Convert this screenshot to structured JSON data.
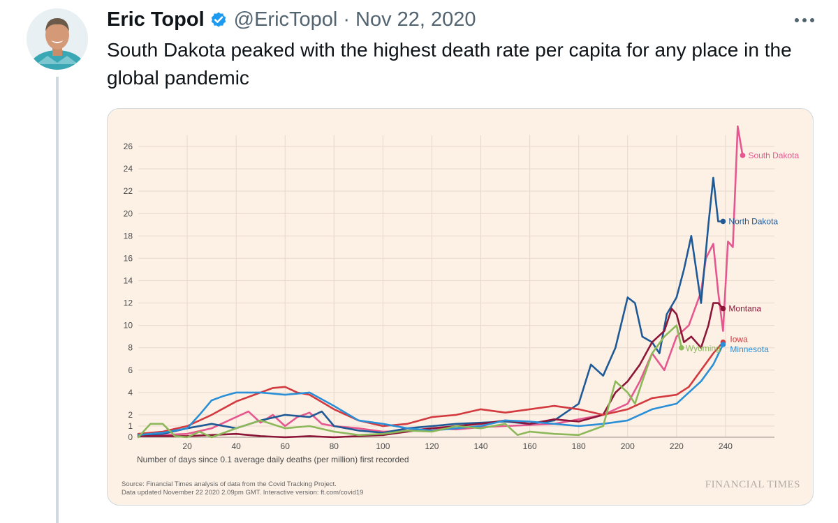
{
  "tweet": {
    "author_name": "Eric Topol",
    "handle": "@EricTopol",
    "separator": "·",
    "date": "Nov 22, 2020",
    "text": "South Dakota peaked with the highest death rate per capita for any place in the global pandemic",
    "icons": {
      "verified": "verified-badge-icon",
      "more": "more-options-icon",
      "avatar": "avatar-photo"
    },
    "colors": {
      "verified": "#1d9bf0",
      "secondary_text": "#536471"
    }
  },
  "chart_data": {
    "type": "line",
    "xlabel": "Number of days since 0.1 average daily deaths (per million) first recorded",
    "ylabel": "",
    "xlim": [
      0,
      260
    ],
    "ylim": [
      0,
      27
    ],
    "x_ticks": [
      20,
      40,
      60,
      80,
      100,
      120,
      140,
      160,
      180,
      200,
      220,
      240
    ],
    "y_ticks": [
      0,
      1,
      2,
      4,
      6,
      8,
      10,
      12,
      14,
      16,
      18,
      20,
      22,
      24,
      26
    ],
    "grid": true,
    "source_line_1": "Source: Financial Times analysis of data from the Covid Tracking Project.",
    "source_line_2": "Data updated November 22 2020 2.09pm GMT. Interactive version: ft.com/covid19",
    "brand": "FINANCIAL TIMES",
    "series": [
      {
        "name": "South Dakota",
        "color": "#e5588f",
        "x": [
          0,
          10,
          20,
          30,
          40,
          45,
          50,
          55,
          60,
          65,
          70,
          75,
          80,
          90,
          100,
          110,
          120,
          130,
          140,
          150,
          160,
          170,
          180,
          190,
          200,
          205,
          210,
          215,
          220,
          225,
          230,
          232,
          235,
          237,
          239,
          241,
          243,
          245,
          247
        ],
        "y": [
          0.3,
          0.2,
          0.3,
          0.8,
          1.8,
          2.3,
          1.3,
          2.0,
          1.0,
          1.8,
          2.2,
          1.2,
          1.0,
          0.8,
          0.5,
          0.6,
          0.8,
          0.7,
          0.9,
          1.0,
          1.1,
          1.2,
          1.6,
          2.0,
          3.0,
          5.0,
          7.5,
          6.0,
          9.0,
          10.0,
          13.0,
          16.0,
          17.3,
          13.0,
          9.5,
          17.5,
          17.0,
          27.8,
          25.2
        ]
      },
      {
        "name": "North Dakota",
        "color": "#1f5a96",
        "x": [
          0,
          10,
          20,
          30,
          40,
          50,
          60,
          70,
          75,
          80,
          90,
          100,
          110,
          120,
          130,
          140,
          150,
          160,
          170,
          180,
          185,
          190,
          195,
          200,
          203,
          206,
          210,
          213,
          216,
          220,
          223,
          226,
          230,
          233,
          235,
          237,
          239
        ],
        "y": [
          0.2,
          0.3,
          0.8,
          1.2,
          0.8,
          1.5,
          2.0,
          1.8,
          2.3,
          1.0,
          0.6,
          0.4,
          0.8,
          1.0,
          1.2,
          1.3,
          1.4,
          1.2,
          1.5,
          3.0,
          6.5,
          5.5,
          8.0,
          12.5,
          12.0,
          9.0,
          8.5,
          7.5,
          11.0,
          12.5,
          15.0,
          18.0,
          12.0,
          19.0,
          23.2,
          19.3,
          19.3
        ]
      },
      {
        "name": "Montana",
        "color": "#8c1637",
        "x": [
          0,
          10,
          20,
          30,
          40,
          50,
          60,
          70,
          80,
          90,
          100,
          110,
          120,
          130,
          140,
          150,
          160,
          170,
          180,
          190,
          195,
          200,
          205,
          210,
          215,
          218,
          220,
          223,
          226,
          230,
          233,
          235,
          237,
          239
        ],
        "y": [
          0.1,
          0.1,
          0.1,
          0.2,
          0.3,
          0.1,
          0.0,
          0.1,
          0.0,
          0.1,
          0.2,
          0.5,
          0.8,
          1.0,
          1.2,
          1.5,
          1.2,
          1.6,
          1.4,
          2.0,
          4.0,
          5.0,
          6.5,
          8.5,
          9.5,
          11.5,
          11.0,
          8.5,
          9.0,
          8.0,
          10.0,
          12.0,
          12.0,
          11.5
        ]
      },
      {
        "name": "Iowa",
        "color": "#d23a3f",
        "x": [
          0,
          10,
          20,
          30,
          40,
          50,
          55,
          60,
          65,
          70,
          80,
          90,
          100,
          110,
          120,
          130,
          140,
          150,
          160,
          170,
          180,
          190,
          200,
          210,
          220,
          225,
          230,
          235,
          239
        ],
        "y": [
          0.3,
          0.5,
          1.0,
          2.0,
          3.2,
          4.0,
          4.4,
          4.5,
          4.0,
          3.8,
          2.5,
          1.5,
          1.0,
          1.2,
          1.8,
          2.0,
          2.5,
          2.2,
          2.5,
          2.8,
          2.5,
          2.0,
          2.5,
          3.5,
          3.8,
          4.5,
          6.0,
          7.5,
          8.5
        ]
      },
      {
        "name": "Minnesota",
        "color": "#2a8fd6",
        "x": [
          0,
          10,
          20,
          25,
          30,
          35,
          40,
          50,
          60,
          70,
          80,
          90,
          100,
          110,
          120,
          130,
          140,
          150,
          160,
          170,
          180,
          190,
          200,
          210,
          220,
          230,
          235,
          239
        ],
        "y": [
          0.2,
          0.4,
          0.8,
          2.0,
          3.3,
          3.7,
          4.0,
          4.0,
          3.8,
          4.0,
          2.8,
          1.5,
          1.2,
          0.8,
          0.6,
          0.8,
          1.0,
          1.5,
          1.4,
          1.2,
          1.0,
          1.2,
          1.5,
          2.5,
          3.0,
          5.0,
          6.5,
          8.3
        ]
      },
      {
        "name": "Wyoming",
        "color": "#8db85a",
        "x": [
          0,
          5,
          10,
          15,
          20,
          25,
          30,
          40,
          50,
          60,
          70,
          80,
          90,
          100,
          110,
          120,
          130,
          140,
          150,
          155,
          160,
          170,
          180,
          185,
          190,
          195,
          200,
          203,
          206,
          210,
          215,
          220,
          222
        ],
        "y": [
          0.0,
          1.2,
          1.2,
          0.1,
          0.0,
          0.5,
          0.0,
          0.8,
          1.5,
          0.8,
          1.0,
          0.5,
          0.2,
          0.3,
          0.6,
          0.5,
          1.0,
          0.8,
          1.2,
          0.2,
          0.5,
          0.3,
          0.2,
          0.6,
          1.0,
          5.0,
          4.0,
          3.0,
          5.0,
          7.5,
          9.0,
          10.0,
          8.0
        ]
      }
    ],
    "labels": [
      {
        "text": "South Dakota",
        "series": "South Dakota",
        "x": 247,
        "y": 25.2
      },
      {
        "text": "North Dakota",
        "series": "North Dakota",
        "x": 239,
        "y": 19.3
      },
      {
        "text": "Montana",
        "series": "Montana",
        "x": 239,
        "y": 11.5
      },
      {
        "text": "Iowa",
        "series": "Iowa",
        "x": 239,
        "y": 8.5
      },
      {
        "text": "Minnesota",
        "series": "Minnesota",
        "x": 239,
        "y": 8.3
      },
      {
        "text": "Wyoming",
        "series": "Wyoming",
        "x": 222,
        "y": 8.0
      }
    ]
  }
}
